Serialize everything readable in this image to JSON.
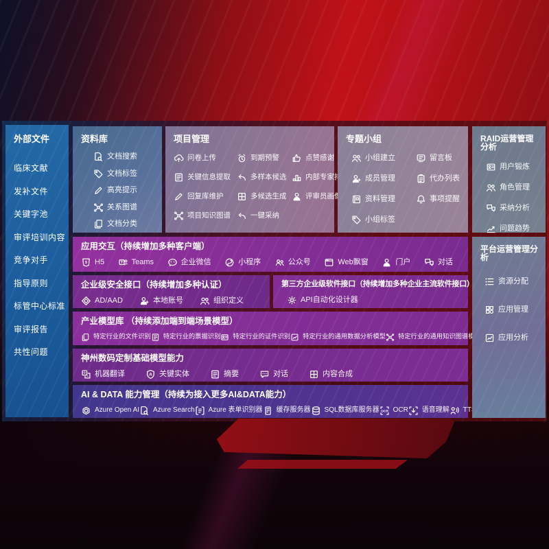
{
  "colors": {
    "background_red": "#c11118",
    "sidebar_blue": "#1f61a0",
    "row_purple": "#8a2f9c",
    "row_indigo": "#42378d"
  },
  "sidebar": {
    "title": "外部文件",
    "items": [
      "临床文献",
      "发补文件",
      "关键字池",
      "审评培训内容",
      "竞争对手",
      "指导原则",
      "标管中心标准",
      "审评报告",
      "共性问题"
    ]
  },
  "top_boxes": {
    "library": {
      "title": "资料库",
      "items": [
        {
          "icon": "doc-search",
          "label": "文档搜索"
        },
        {
          "icon": "tag",
          "label": "文档标签"
        },
        {
          "icon": "pencil",
          "label": "高亮提示"
        },
        {
          "icon": "network",
          "label": "关系图谱"
        },
        {
          "icon": "docs",
          "label": "文档分类"
        }
      ]
    },
    "project": {
      "title": "项目管理",
      "items": [
        {
          "icon": "cloud-up",
          "label": "问卷上传"
        },
        {
          "icon": "alarm",
          "label": "到期预警"
        },
        {
          "icon": "thumb",
          "label": "点赞感谢"
        },
        {
          "icon": "doc-lines",
          "label": "关键信息提取"
        },
        {
          "icon": "reply",
          "label": "多样本候选"
        },
        {
          "icon": "podium",
          "label": "内部专家排名"
        },
        {
          "icon": "pencil",
          "label": "回复库维护"
        },
        {
          "icon": "puzzle",
          "label": "多候选生成"
        },
        {
          "icon": "person",
          "label": "评审员画像"
        },
        {
          "icon": "network",
          "label": "项目知识图谱"
        },
        {
          "icon": "reply",
          "label": "一键采纳"
        }
      ]
    },
    "group": {
      "title": "专题小组",
      "items": [
        {
          "icon": "people",
          "label": "小组建立"
        },
        {
          "icon": "msg-board",
          "label": "留言板"
        },
        {
          "icon": "person-plus",
          "label": "成员管理"
        },
        {
          "icon": "clipboard",
          "label": "代办列表"
        },
        {
          "icon": "book",
          "label": "资料管理"
        },
        {
          "icon": "bell",
          "label": "事项提醒"
        },
        {
          "icon": "tag",
          "label": "小组标签"
        }
      ]
    },
    "raid": {
      "title": "RAID运营管理分析",
      "items": [
        {
          "icon": "id-card",
          "label": "用户锻炼"
        },
        {
          "icon": "people",
          "label": "角色管理"
        },
        {
          "icon": "chat-qa",
          "label": "采纳分析"
        },
        {
          "icon": "chart-line",
          "label": "问题趋势"
        }
      ]
    }
  },
  "rows": {
    "interaction": {
      "title": "应用交互（持续增加多种客户端）",
      "items": [
        {
          "icon": "h5",
          "label": "H5"
        },
        {
          "icon": "teams",
          "label": "Teams"
        },
        {
          "icon": "wechat",
          "label": "企业微信"
        },
        {
          "icon": "miniprogram",
          "label": "小程序"
        },
        {
          "icon": "scan-person",
          "label": "公众号"
        },
        {
          "icon": "web-window",
          "label": "Web飘窗"
        },
        {
          "icon": "person",
          "label": "门户"
        },
        {
          "icon": "chat-qa",
          "label": "对话"
        }
      ]
    },
    "security": {
      "title": "企业级安全接口（持续增加多种认证）",
      "items": [
        {
          "icon": "ad-diamond",
          "label": "AD/AAD"
        },
        {
          "icon": "person-plus",
          "label": "本地账号"
        },
        {
          "icon": "people",
          "label": "组织定义"
        }
      ]
    },
    "third_party": {
      "title": "第三方企业级软件接口（持续增加多种企业主流软件接口）",
      "items": [
        {
          "icon": "gear",
          "label": "API自动化设计器"
        }
      ]
    },
    "industry_models": {
      "title": "产业模型库 （持续添加端到端场景模型）",
      "items": [
        {
          "icon": "docs",
          "label": "特定行业的文件识别"
        },
        {
          "icon": "doc-lines",
          "label": "特定行业的票据识别"
        },
        {
          "icon": "id-card",
          "label": "特定行业的证件识别"
        },
        {
          "icon": "chart-box",
          "label": "特定行业的通用数据分析模型"
        },
        {
          "icon": "network",
          "label": "特定行业的通用知识图谱模型"
        }
      ]
    },
    "base_models": {
      "title": "神州数码定制基础模型能力",
      "items": [
        {
          "icon": "translate",
          "label": "机器翻译"
        },
        {
          "icon": "shield-a",
          "label": "关键实体"
        },
        {
          "icon": "doc-lines",
          "label": "摘要"
        },
        {
          "icon": "chat",
          "label": "对话"
        },
        {
          "icon": "puzzle",
          "label": "内容合成"
        }
      ]
    },
    "ai_data": {
      "title": "AI & DATA 能力管理（持续为接入更多AI&DATA能力）",
      "items": [
        {
          "icon": "openai",
          "label": "Azure Open AI"
        },
        {
          "icon": "doc-search",
          "label": "Azure Search"
        },
        {
          "icon": "form-scan",
          "label": "Azure 表单识别器"
        },
        {
          "icon": "server",
          "label": "缓存服务器"
        },
        {
          "icon": "db",
          "label": "SQL数据库服务器"
        },
        {
          "icon": "ocr",
          "label": "OCR"
        },
        {
          "icon": "speech",
          "label": "语音理解"
        },
        {
          "icon": "tts",
          "label": "TTS"
        }
      ]
    }
  },
  "platform": {
    "title": "平台运营管理分析",
    "items": [
      {
        "icon": "list",
        "label": "资源分配"
      },
      {
        "icon": "grid",
        "label": "应用管理"
      },
      {
        "icon": "chart-box",
        "label": "应用分析"
      }
    ]
  }
}
